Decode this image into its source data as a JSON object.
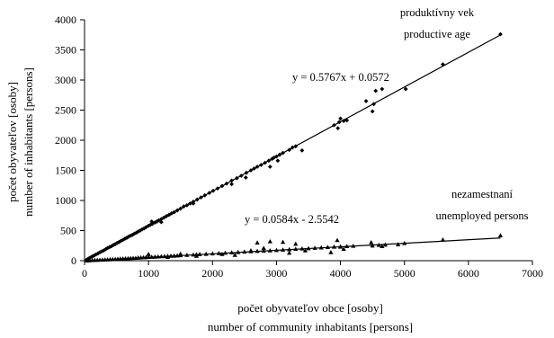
{
  "chart_data": {
    "type": "scatter",
    "xlabel": [
      "počet obyvateľov obce  [osoby]",
      "number of community inhabitants  [persons]"
    ],
    "ylabel": [
      "počet obyvateľov  [osoby]",
      "number of inhabitants  [persons]"
    ],
    "xlim": [
      0,
      7000
    ],
    "ylim": [
      0,
      4000
    ],
    "xticks": [
      0,
      1000,
      2000,
      3000,
      4000,
      5000,
      6000,
      7000
    ],
    "yticks": [
      0,
      500,
      1000,
      1500,
      2000,
      2500,
      3000,
      3500,
      4000
    ],
    "grid": false,
    "series": [
      {
        "name": "produktívny vek / productive age",
        "marker": "diamond",
        "label_lines": [
          "produktívny vek",
          "productive age"
        ],
        "trendline": {
          "slope": 0.5767,
          "intercept": 0.0572,
          "x_range": [
            0,
            6500
          ],
          "equation": "y = 0.5767x + 0.0572"
        },
        "points": [
          [
            30,
            15
          ],
          [
            60,
            35
          ],
          [
            90,
            52
          ],
          [
            120,
            70
          ],
          [
            150,
            85
          ],
          [
            180,
            105
          ],
          [
            210,
            120
          ],
          [
            240,
            140
          ],
          [
            270,
            155
          ],
          [
            300,
            170
          ],
          [
            330,
            190
          ],
          [
            360,
            210
          ],
          [
            390,
            225
          ],
          [
            420,
            240
          ],
          [
            450,
            260
          ],
          [
            480,
            275
          ],
          [
            510,
            295
          ],
          [
            540,
            310
          ],
          [
            570,
            330
          ],
          [
            600,
            345
          ],
          [
            630,
            365
          ],
          [
            660,
            380
          ],
          [
            690,
            400
          ],
          [
            720,
            415
          ],
          [
            750,
            430
          ],
          [
            780,
            450
          ],
          [
            810,
            465
          ],
          [
            840,
            485
          ],
          [
            870,
            500
          ],
          [
            900,
            520
          ],
          [
            930,
            535
          ],
          [
            960,
            555
          ],
          [
            1000,
            580
          ],
          [
            1030,
            595
          ],
          [
            1060,
            610
          ],
          [
            1100,
            635
          ],
          [
            1130,
            650
          ],
          [
            1160,
            670
          ],
          [
            1200,
            690
          ],
          [
            1240,
            715
          ],
          [
            1280,
            740
          ],
          [
            1320,
            760
          ],
          [
            1360,
            785
          ],
          [
            1400,
            805
          ],
          [
            1450,
            835
          ],
          [
            1500,
            865
          ],
          [
            1550,
            900
          ],
          [
            1600,
            920
          ],
          [
            1650,
            950
          ],
          [
            1700,
            980
          ],
          [
            1760,
            1015
          ],
          [
            1820,
            1050
          ],
          [
            1880,
            1085
          ],
          [
            1950,
            1125
          ],
          [
            2010,
            1160
          ],
          [
            2080,
            1200
          ],
          [
            2150,
            1240
          ],
          [
            2220,
            1280
          ],
          [
            2300,
            1330
          ],
          [
            2380,
            1370
          ],
          [
            2450,
            1410
          ],
          [
            2530,
            1460
          ],
          [
            2600,
            1500
          ],
          [
            2650,
            1530
          ],
          [
            2700,
            1560
          ],
          [
            2760,
            1590
          ],
          [
            2820,
            1625
          ],
          [
            2880,
            1660
          ],
          [
            2930,
            1690
          ],
          [
            2960,
            1710
          ],
          [
            3000,
            1730
          ],
          [
            3050,
            1760
          ],
          [
            3100,
            1790
          ],
          [
            3200,
            1840
          ],
          [
            3250,
            1880
          ],
          [
            3300,
            1900
          ],
          [
            3400,
            1830
          ],
          [
            3900,
            2250
          ],
          [
            3960,
            2200
          ],
          [
            3980,
            2300
          ],
          [
            4000,
            2360
          ],
          [
            4050,
            2320
          ],
          [
            4100,
            2330
          ],
          [
            4400,
            2650
          ],
          [
            4500,
            2480
          ],
          [
            4520,
            2600
          ],
          [
            4550,
            2820
          ],
          [
            4650,
            2850
          ],
          [
            5020,
            2850
          ],
          [
            5600,
            3260
          ],
          [
            6500,
            3760
          ],
          [
            1200,
            640
          ],
          [
            1700,
            950
          ],
          [
            2300,
            1270
          ],
          [
            2520,
            1380
          ],
          [
            3020,
            1660
          ],
          [
            2900,
            1560
          ],
          [
            1050,
            650
          ]
        ]
      },
      {
        "name": "nezamestnaní / unemployed persons",
        "marker": "triangle",
        "label_lines": [
          "nezamestnaní",
          "unemployed persons"
        ],
        "trendline": {
          "slope": 0.0584,
          "intercept": -2.5542,
          "x_range": [
            0,
            6500
          ],
          "equation": "y = 0.0584x - 2.5542"
        },
        "points": [
          [
            40,
            2
          ],
          [
            80,
            5
          ],
          [
            120,
            8
          ],
          [
            160,
            10
          ],
          [
            200,
            12
          ],
          [
            240,
            14
          ],
          [
            280,
            16
          ],
          [
            320,
            18
          ],
          [
            360,
            20
          ],
          [
            400,
            22
          ],
          [
            440,
            24
          ],
          [
            480,
            27
          ],
          [
            520,
            30
          ],
          [
            560,
            32
          ],
          [
            600,
            34
          ],
          [
            640,
            36
          ],
          [
            680,
            40
          ],
          [
            720,
            42
          ],
          [
            760,
            44
          ],
          [
            800,
            46
          ],
          [
            840,
            50
          ],
          [
            880,
            52
          ],
          [
            920,
            55
          ],
          [
            960,
            58
          ],
          [
            1000,
            60
          ],
          [
            1050,
            62
          ],
          [
            1100,
            65
          ],
          [
            1150,
            68
          ],
          [
            1200,
            72
          ],
          [
            1250,
            74
          ],
          [
            1300,
            78
          ],
          [
            1350,
            80
          ],
          [
            1400,
            82
          ],
          [
            1450,
            86
          ],
          [
            1500,
            88
          ],
          [
            1600,
            94
          ],
          [
            1700,
            100
          ],
          [
            1750,
            105
          ],
          [
            1800,
            108
          ],
          [
            1900,
            112
          ],
          [
            2000,
            118
          ],
          [
            2100,
            124
          ],
          [
            2200,
            130
          ],
          [
            2300,
            136
          ],
          [
            2400,
            142
          ],
          [
            2500,
            148
          ],
          [
            2600,
            154
          ],
          [
            2700,
            160
          ],
          [
            2800,
            165
          ],
          [
            2900,
            170
          ],
          [
            3000,
            175
          ],
          [
            3100,
            182
          ],
          [
            3200,
            188
          ],
          [
            3300,
            195
          ],
          [
            3400,
            200
          ],
          [
            3500,
            205
          ],
          [
            3600,
            212
          ],
          [
            3700,
            218
          ],
          [
            3800,
            225
          ],
          [
            3900,
            230
          ],
          [
            4000,
            235
          ],
          [
            4100,
            240
          ],
          [
            4200,
            245
          ],
          [
            4500,
            250
          ],
          [
            4600,
            260
          ],
          [
            4700,
            265
          ],
          [
            4900,
            270
          ],
          [
            5000,
            290
          ],
          [
            5600,
            350
          ],
          [
            6500,
            420
          ],
          [
            2700,
            300
          ],
          [
            2900,
            320
          ],
          [
            3100,
            310
          ],
          [
            3300,
            280
          ],
          [
            3950,
            340
          ],
          [
            4000,
            230
          ],
          [
            4050,
            195
          ],
          [
            3850,
            140
          ],
          [
            2800,
            210
          ],
          [
            2150,
            110
          ],
          [
            1750,
            80
          ],
          [
            1300,
            60
          ],
          [
            1000,
            110
          ],
          [
            1500,
            115
          ],
          [
            2350,
            95
          ],
          [
            2600,
            170
          ],
          [
            3200,
            130
          ],
          [
            3450,
            170
          ],
          [
            4480,
            305
          ],
          [
            4650,
            240
          ]
        ]
      }
    ]
  }
}
